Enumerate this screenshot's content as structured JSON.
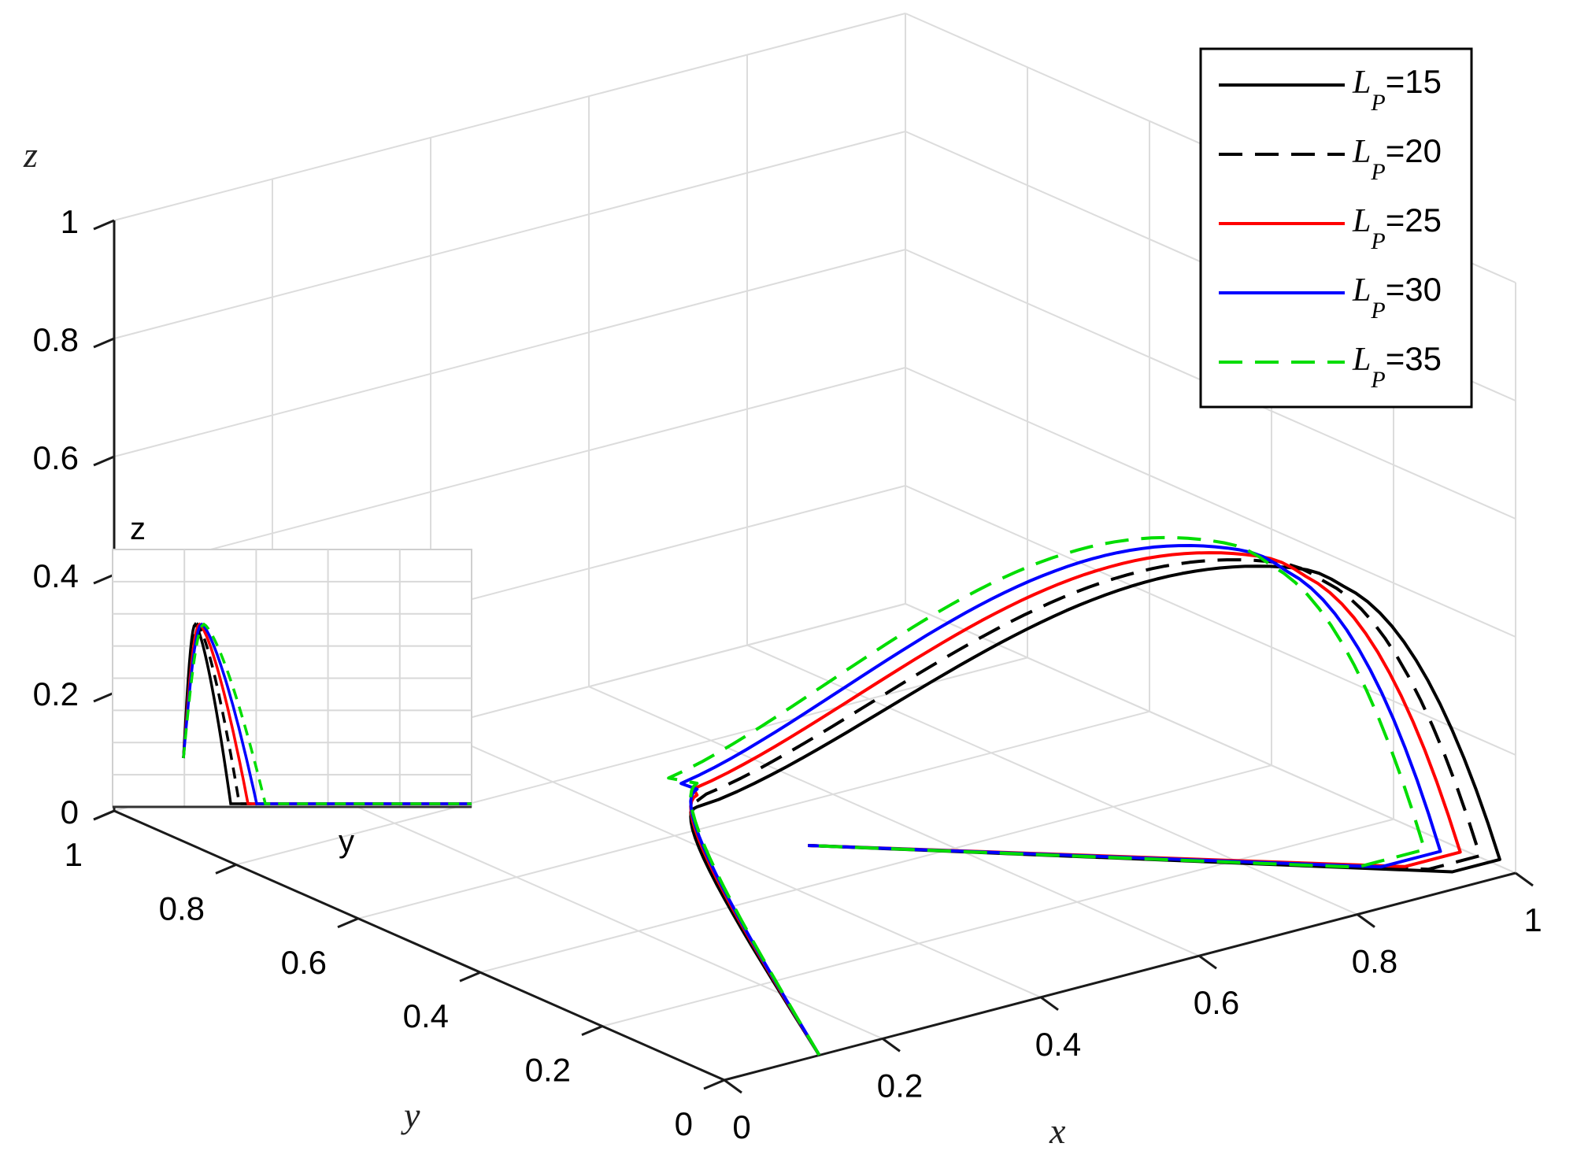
{
  "chart_data": {
    "type": "line3d",
    "title": "",
    "xlabel": "x",
    "ylabel": "y",
    "zlabel": "z",
    "xlim": [
      0,
      1
    ],
    "ylim": [
      0,
      1
    ],
    "zlim": [
      0,
      1
    ],
    "x_ticks": [
      "0",
      "0.2",
      "0.4",
      "0.6",
      "0.8",
      "1"
    ],
    "y_ticks": [
      "0",
      "0.2",
      "0.4",
      "0.6",
      "0.8",
      "1"
    ],
    "z_ticks": [
      "0",
      "0.2",
      "0.4",
      "0.6",
      "0.8",
      "1"
    ],
    "grid": true,
    "legend_position": "top-right",
    "legend_var": "L",
    "legend_sub": "P",
    "series": [
      {
        "name": "=15",
        "color": "#000000",
        "dash": "solid",
        "extent": 0.98,
        "peak": 0.556,
        "corner": [
          0.92,
          0.03
        ]
      },
      {
        "name": "=20",
        "color": "#000000",
        "dash": "dashed",
        "extent": 0.955,
        "peak": 0.57,
        "corner": [
          0.89,
          0.045
        ]
      },
      {
        "name": "=25",
        "color": "#ff0000",
        "dash": "solid",
        "extent": 0.93,
        "peak": 0.585,
        "corner": [
          0.86,
          0.06
        ]
      },
      {
        "name": "=30",
        "color": "#0000ff",
        "dash": "solid",
        "extent": 0.905,
        "peak": 0.6,
        "corner": [
          0.83,
          0.07
        ]
      },
      {
        "name": "=35",
        "color": "#00dd00",
        "dash": "dashed",
        "extent": 0.885,
        "peak": 0.615,
        "corner": [
          0.8,
          0.08
        ]
      }
    ],
    "inset": {
      "xlabel": "y",
      "ylabel": "z"
    }
  }
}
